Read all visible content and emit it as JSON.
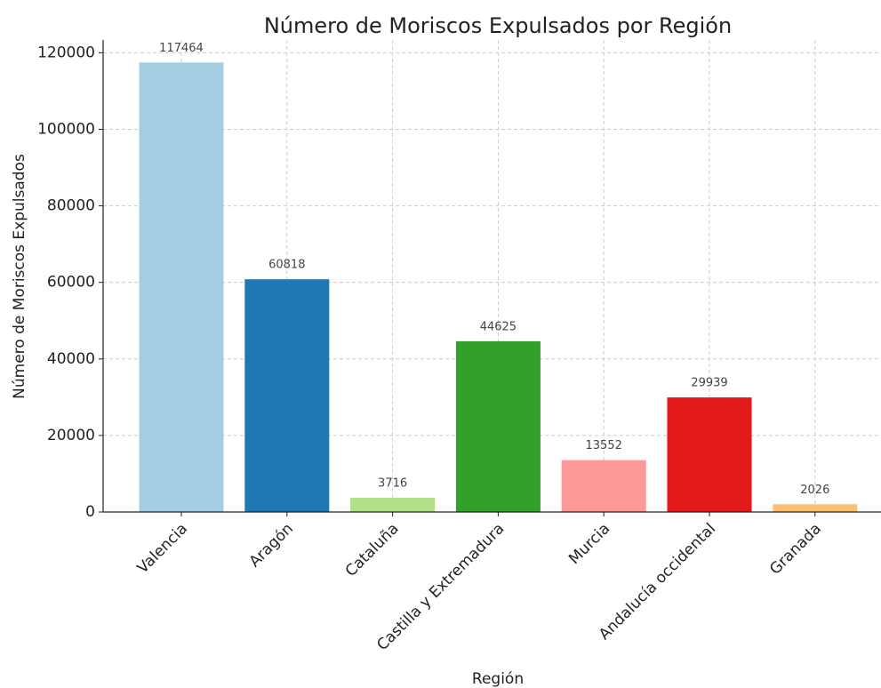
{
  "chart_data": {
    "type": "bar",
    "title": "Número de Moriscos Expulsados por Región",
    "x_label": "Región",
    "y_label": "Número de Moriscos Expulsados",
    "categories": [
      "Valencia",
      "Aragón",
      "Cataluña",
      "Castilla y Extremadura",
      "Murcia",
      "Andalucía occidental",
      "Granada"
    ],
    "values": [
      117464,
      60818,
      3716,
      44625,
      13552,
      29939,
      2026
    ],
    "colors": [
      "#a6cee3",
      "#1f78b4",
      "#b2df8a",
      "#33a02c",
      "#fb9a99",
      "#e31a1c",
      "#fdbf6f"
    ],
    "ylim": [
      0,
      123337
    ],
    "yticks": [
      0,
      20000,
      40000,
      60000,
      80000,
      100000,
      120000
    ],
    "grid": true
  }
}
